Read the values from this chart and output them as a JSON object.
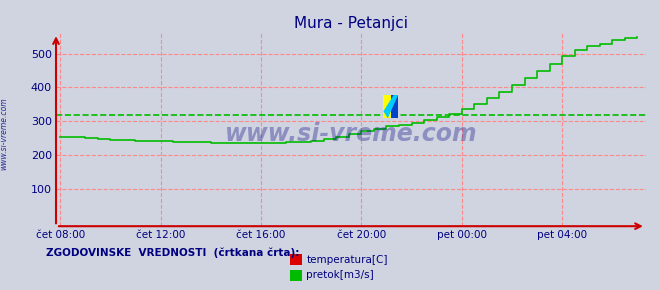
{
  "title": "Mura - Petanjci",
  "bg_color": "#d0d4e0",
  "plot_bg_color": "#d0d4e0",
  "grid_color": "#ff8888",
  "axis_color": "#cc0000",
  "tick_color": "#000080",
  "title_color": "#000080",
  "watermark": "www.si-vreme.com",
  "watermark_color": "#000080",
  "side_label": "www.si-vreme.com",
  "x_tick_labels": [
    "čet 08:00",
    "čet 12:00",
    "čet 16:00",
    "čet 20:00",
    "pet 00:00",
    "pet 04:00"
  ],
  "x_tick_positions": [
    0,
    240,
    480,
    720,
    960,
    1200
  ],
  "y_ticks": [
    100,
    200,
    300,
    400,
    500
  ],
  "ylim": [
    -10,
    560
  ],
  "xlim": [
    -10,
    1400
  ],
  "legend_label": "ZGODOVINSKE  VREDNOSTI  (črtkana črta):",
  "legend_items": [
    "temperatura[C]",
    "pretok[m3/s]"
  ],
  "legend_colors": [
    "#dd0000",
    "#00bb00"
  ],
  "pretok_color": "#00bb00",
  "pretok_historical_value": 318,
  "pretok_data_x": [
    0,
    30,
    60,
    90,
    120,
    150,
    180,
    210,
    240,
    270,
    300,
    330,
    360,
    390,
    420,
    450,
    480,
    510,
    540,
    570,
    600,
    630,
    660,
    690,
    720,
    750,
    780,
    810,
    840,
    870,
    900,
    930,
    960,
    990,
    1020,
    1050,
    1080,
    1110,
    1140,
    1170,
    1200,
    1230,
    1260,
    1290,
    1320,
    1350,
    1380
  ],
  "pretok_data_y": [
    255,
    253,
    250,
    248,
    246,
    244,
    243,
    242,
    241,
    240,
    239,
    238,
    237,
    237,
    236,
    236,
    236,
    237,
    238,
    240,
    243,
    248,
    255,
    262,
    270,
    278,
    285,
    290,
    296,
    303,
    312,
    323,
    335,
    350,
    368,
    388,
    408,
    428,
    450,
    470,
    492,
    510,
    522,
    530,
    540,
    545,
    548
  ]
}
